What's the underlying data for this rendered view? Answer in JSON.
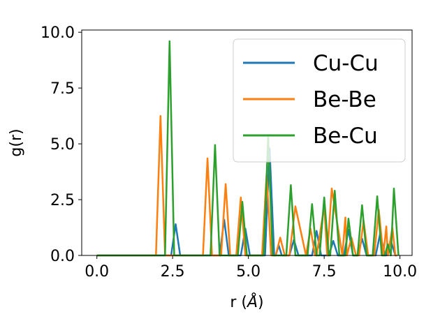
{
  "chart_data": {
    "type": "line",
    "xlabel": "r ($\\AA$)",
    "xlabel_parts": {
      "prefix": "r (",
      "symbol": "Å",
      "suffix": ")"
    },
    "ylabel": "g(r)",
    "xlim": [
      -0.5,
      10.4
    ],
    "ylim": [
      0,
      10.1
    ],
    "xticks": [
      0.0,
      2.5,
      5.0,
      7.5,
      10.0
    ],
    "xtick_labels": [
      "0.0",
      "2.5",
      "5.0",
      "7.5",
      "10.0"
    ],
    "yticks": [
      0.0,
      2.5,
      5.0,
      7.5,
      10.0
    ],
    "ytick_labels": [
      "0.0",
      "2.5",
      "5.0",
      "7.5",
      "10.0"
    ],
    "grid": false,
    "legend_position": "top-right",
    "series": [
      {
        "name": "Cu-Cu",
        "color": "#1f77b4",
        "x": [
          0.0,
          2.45,
          2.6,
          2.75,
          4.05,
          4.2,
          4.35,
          4.75,
          4.9,
          5.05,
          5.55,
          5.7,
          5.85,
          5.9,
          6.0,
          6.1,
          6.35,
          6.5,
          6.65,
          7.1,
          7.25,
          7.4,
          7.65,
          7.8,
          7.95,
          8.15,
          8.3,
          8.45,
          8.6,
          8.75,
          8.9,
          9.2,
          9.35,
          9.5,
          9.55,
          9.7,
          9.85,
          9.9
        ],
        "y": [
          0.0,
          0.0,
          1.4,
          0.0,
          0.0,
          1.6,
          0.0,
          0.0,
          1.2,
          0.0,
          0.0,
          4.8,
          0.0,
          0.0,
          0.45,
          0.0,
          0.0,
          0.7,
          0.0,
          0.0,
          1.1,
          0.0,
          0.0,
          0.65,
          0.0,
          0.0,
          1.15,
          0.0,
          0.0,
          0.75,
          0.0,
          0.0,
          1.0,
          0.0,
          0.0,
          0.65,
          0.0,
          0.0
        ]
      },
      {
        "name": "Be-Be",
        "color": "#ff7f0e",
        "x": [
          0.0,
          1.95,
          2.1,
          2.25,
          3.5,
          3.65,
          3.8,
          4.1,
          4.25,
          4.4,
          4.6,
          4.75,
          4.9,
          5.45,
          5.6,
          5.75,
          5.9,
          6.05,
          6.2,
          6.35,
          6.55,
          6.9,
          7.05,
          7.2,
          7.25,
          7.5,
          7.6,
          7.75,
          8.1,
          8.2,
          8.25,
          8.4,
          8.55,
          8.65,
          8.8,
          8.95,
          9.15,
          9.3,
          9.45,
          9.55,
          9.6,
          9.75,
          9.85,
          9.9
        ],
        "y": [
          0.0,
          0.0,
          6.25,
          0.0,
          0.0,
          4.35,
          0.0,
          0.0,
          3.2,
          0.0,
          0.0,
          2.6,
          0.0,
          0.0,
          3.65,
          0.0,
          0.0,
          0.8,
          0.0,
          0.0,
          2.2,
          0.0,
          1.2,
          0.0,
          0.0,
          2.2,
          0.0,
          3.0,
          0.0,
          1.7,
          0.0,
          0.8,
          0.0,
          0.0,
          1.55,
          0.0,
          0.0,
          2.05,
          0.0,
          1.3,
          0.0,
          1.25,
          0.0,
          0.0
        ]
      },
      {
        "name": "Be-Cu",
        "color": "#2ca02c",
        "x": [
          0.0,
          2.25,
          2.4,
          2.55,
          3.75,
          3.9,
          4.05,
          4.65,
          4.8,
          4.95,
          5.5,
          5.65,
          5.8,
          6.25,
          6.4,
          6.55,
          6.95,
          7.1,
          7.25,
          7.35,
          7.5,
          7.65,
          7.7,
          7.85,
          8.0,
          8.2,
          8.3,
          8.45,
          8.6,
          8.75,
          8.9,
          9.1,
          9.25,
          9.4,
          9.5,
          9.6,
          9.7,
          9.8,
          9.95
        ],
        "y": [
          0.0,
          0.0,
          9.6,
          0.0,
          0.0,
          4.95,
          0.0,
          0.0,
          2.4,
          0.0,
          0.0,
          5.3,
          0.0,
          0.0,
          3.15,
          0.0,
          0.0,
          2.3,
          0.0,
          0.0,
          2.6,
          0.0,
          0.0,
          2.9,
          0.0,
          0.0,
          1.65,
          0.0,
          0.0,
          2.25,
          0.0,
          0.0,
          2.65,
          0.0,
          0.0,
          0.5,
          0.0,
          3.0,
          0.0
        ]
      }
    ]
  }
}
